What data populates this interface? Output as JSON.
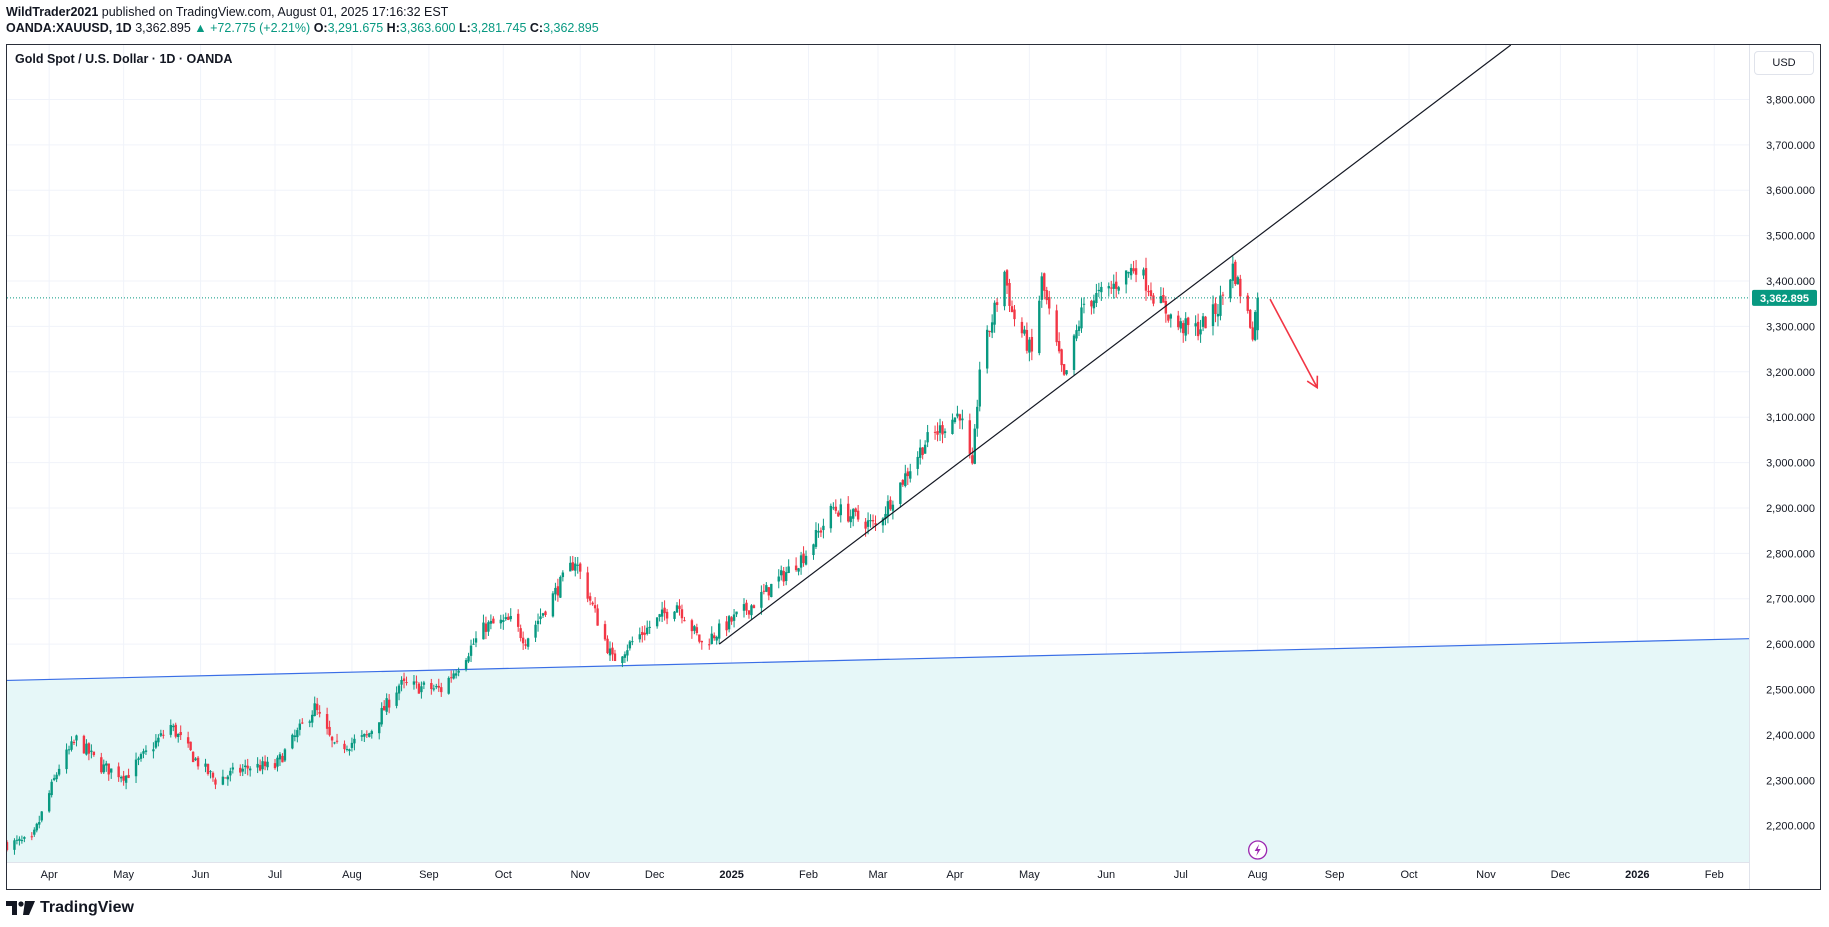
{
  "header": {
    "author": "WildTrader2021",
    "published": "published on TradingView.com, August 01, 2025 17:16:32 EST",
    "symbol": "OANDA:XAUUSD, 1D",
    "last": "3,362.895",
    "change": "▲ +72.775 (+2.21%)",
    "o_label": "O:",
    "o": "3,291.675",
    "h_label": "H:",
    "h": "3,363.600",
    "l_label": "L:",
    "l": "3,281.745",
    "c_label": "C:",
    "c": "3,362.895"
  },
  "chart_title": "Gold Spot / U.S. Dollar · 1D · OANDA",
  "currency_button": "USD",
  "footer": {
    "brand": "TradingView"
  },
  "colors": {
    "up": "#089981",
    "down": "#f23645",
    "trendline": "#131722",
    "support_line": "#3a6ee6",
    "support_fill": "#e6f7f8",
    "arrow": "#f23645",
    "price_tag": "#089981"
  },
  "icons": [
    "tradingview-logo-icon",
    "lightning-icon"
  ],
  "chart_data": {
    "type": "candlestick",
    "title": "Gold Spot / U.S. Dollar · 1D · OANDA",
    "y_axis_side": "right",
    "ylim": [
      2120,
      3920
    ],
    "y_ticks": [
      "2,200.000",
      "2,300.000",
      "2,400.000",
      "2,500.000",
      "2,600.000",
      "2,700.000",
      "2,800.000",
      "2,900.000",
      "3,000.000",
      "3,100.000",
      "3,200.000",
      "3,300.000",
      "3,400.000",
      "3,500.000",
      "3,600.000",
      "3,700.000",
      "3,800.000"
    ],
    "x_ticks": [
      "Apr",
      "May",
      "Jun",
      "Jul",
      "Aug",
      "Sep",
      "Oct",
      "Nov",
      "Dec",
      "2025",
      "Feb",
      "Mar",
      "Apr",
      "May",
      "Jun",
      "Jul",
      "Aug",
      "Sep",
      "Oct",
      "Nov",
      "Dec",
      "2026",
      "Feb"
    ],
    "x_tick_dates": [
      "2024-04-01",
      "2024-05-01",
      "2024-06-01",
      "2024-07-01",
      "2024-08-01",
      "2024-09-01",
      "2024-10-01",
      "2024-11-01",
      "2024-12-01",
      "2025-01-01",
      "2025-02-01",
      "2025-03-01",
      "2025-04-01",
      "2025-05-01",
      "2025-06-01",
      "2025-07-01",
      "2025-08-01",
      "2025-09-01",
      "2025-10-01",
      "2025-11-01",
      "2025-12-01",
      "2026-01-01",
      "2026-02-01"
    ],
    "xlim": [
      "2024-03-15",
      "2026-02-15"
    ],
    "last_price": "3,362.895",
    "last_price_value": 3362.895,
    "grid": true,
    "trendline": {
      "from": [
        "2024-12-27",
        2600
      ],
      "to": [
        "2025-11-11",
        3920
      ]
    },
    "support_line": {
      "from": [
        "2024-03-15",
        2520
      ],
      "to": [
        "2026-02-15",
        2612
      ],
      "fill_below": true
    },
    "arrow": {
      "from": [
        "2025-08-06",
        3360
      ],
      "to": [
        "2025-08-25",
        3165
      ]
    },
    "event_marker": {
      "date": "2025-08-01",
      "icon": "lightning-icon"
    },
    "anchors": [
      [
        "2024-03-15",
        2160
      ],
      [
        "2024-03-25",
        2165
      ],
      [
        "2024-04-05",
        2330
      ],
      [
        "2024-04-12",
        2390
      ],
      [
        "2024-04-22",
        2330
      ],
      [
        "2024-05-02",
        2310
      ],
      [
        "2024-05-20",
        2420
      ],
      [
        "2024-05-30",
        2345
      ],
      [
        "2024-06-07",
        2300
      ],
      [
        "2024-06-21",
        2330
      ],
      [
        "2024-07-01",
        2330
      ],
      [
        "2024-07-17",
        2460
      ],
      [
        "2024-07-25",
        2370
      ],
      [
        "2024-08-07",
        2395
      ],
      [
        "2024-08-20",
        2510
      ],
      [
        "2024-09-06",
        2500
      ],
      [
        "2024-09-24",
        2640
      ],
      [
        "2024-10-04",
        2650
      ],
      [
        "2024-10-10",
        2610
      ],
      [
        "2024-10-30",
        2785
      ],
      [
        "2024-11-14",
        2565
      ],
      [
        "2024-11-25",
        2620
      ],
      [
        "2024-12-10",
        2690
      ],
      [
        "2024-12-20",
        2600
      ],
      [
        "2025-01-10",
        2690
      ],
      [
        "2025-01-31",
        2800
      ],
      [
        "2025-02-11",
        2900
      ],
      [
        "2025-02-28",
        2860
      ],
      [
        "2025-03-20",
        3045
      ],
      [
        "2025-04-03",
        3110
      ],
      [
        "2025-04-08",
        2980
      ],
      [
        "2025-04-11",
        3210
      ],
      [
        "2025-04-21",
        3420
      ],
      [
        "2025-04-24",
        3330
      ],
      [
        "2025-05-02",
        3240
      ],
      [
        "2025-05-06",
        3400
      ],
      [
        "2025-05-15",
        3180
      ],
      [
        "2025-05-23",
        3350
      ],
      [
        "2025-06-02",
        3380
      ],
      [
        "2025-06-13",
        3435
      ],
      [
        "2025-06-20",
        3370
      ],
      [
        "2025-06-30",
        3300
      ],
      [
        "2025-07-08",
        3295
      ],
      [
        "2025-07-16",
        3340
      ],
      [
        "2025-07-22",
        3430
      ],
      [
        "2025-07-30",
        3290
      ],
      [
        "2025-08-01",
        3362.895
      ]
    ]
  }
}
